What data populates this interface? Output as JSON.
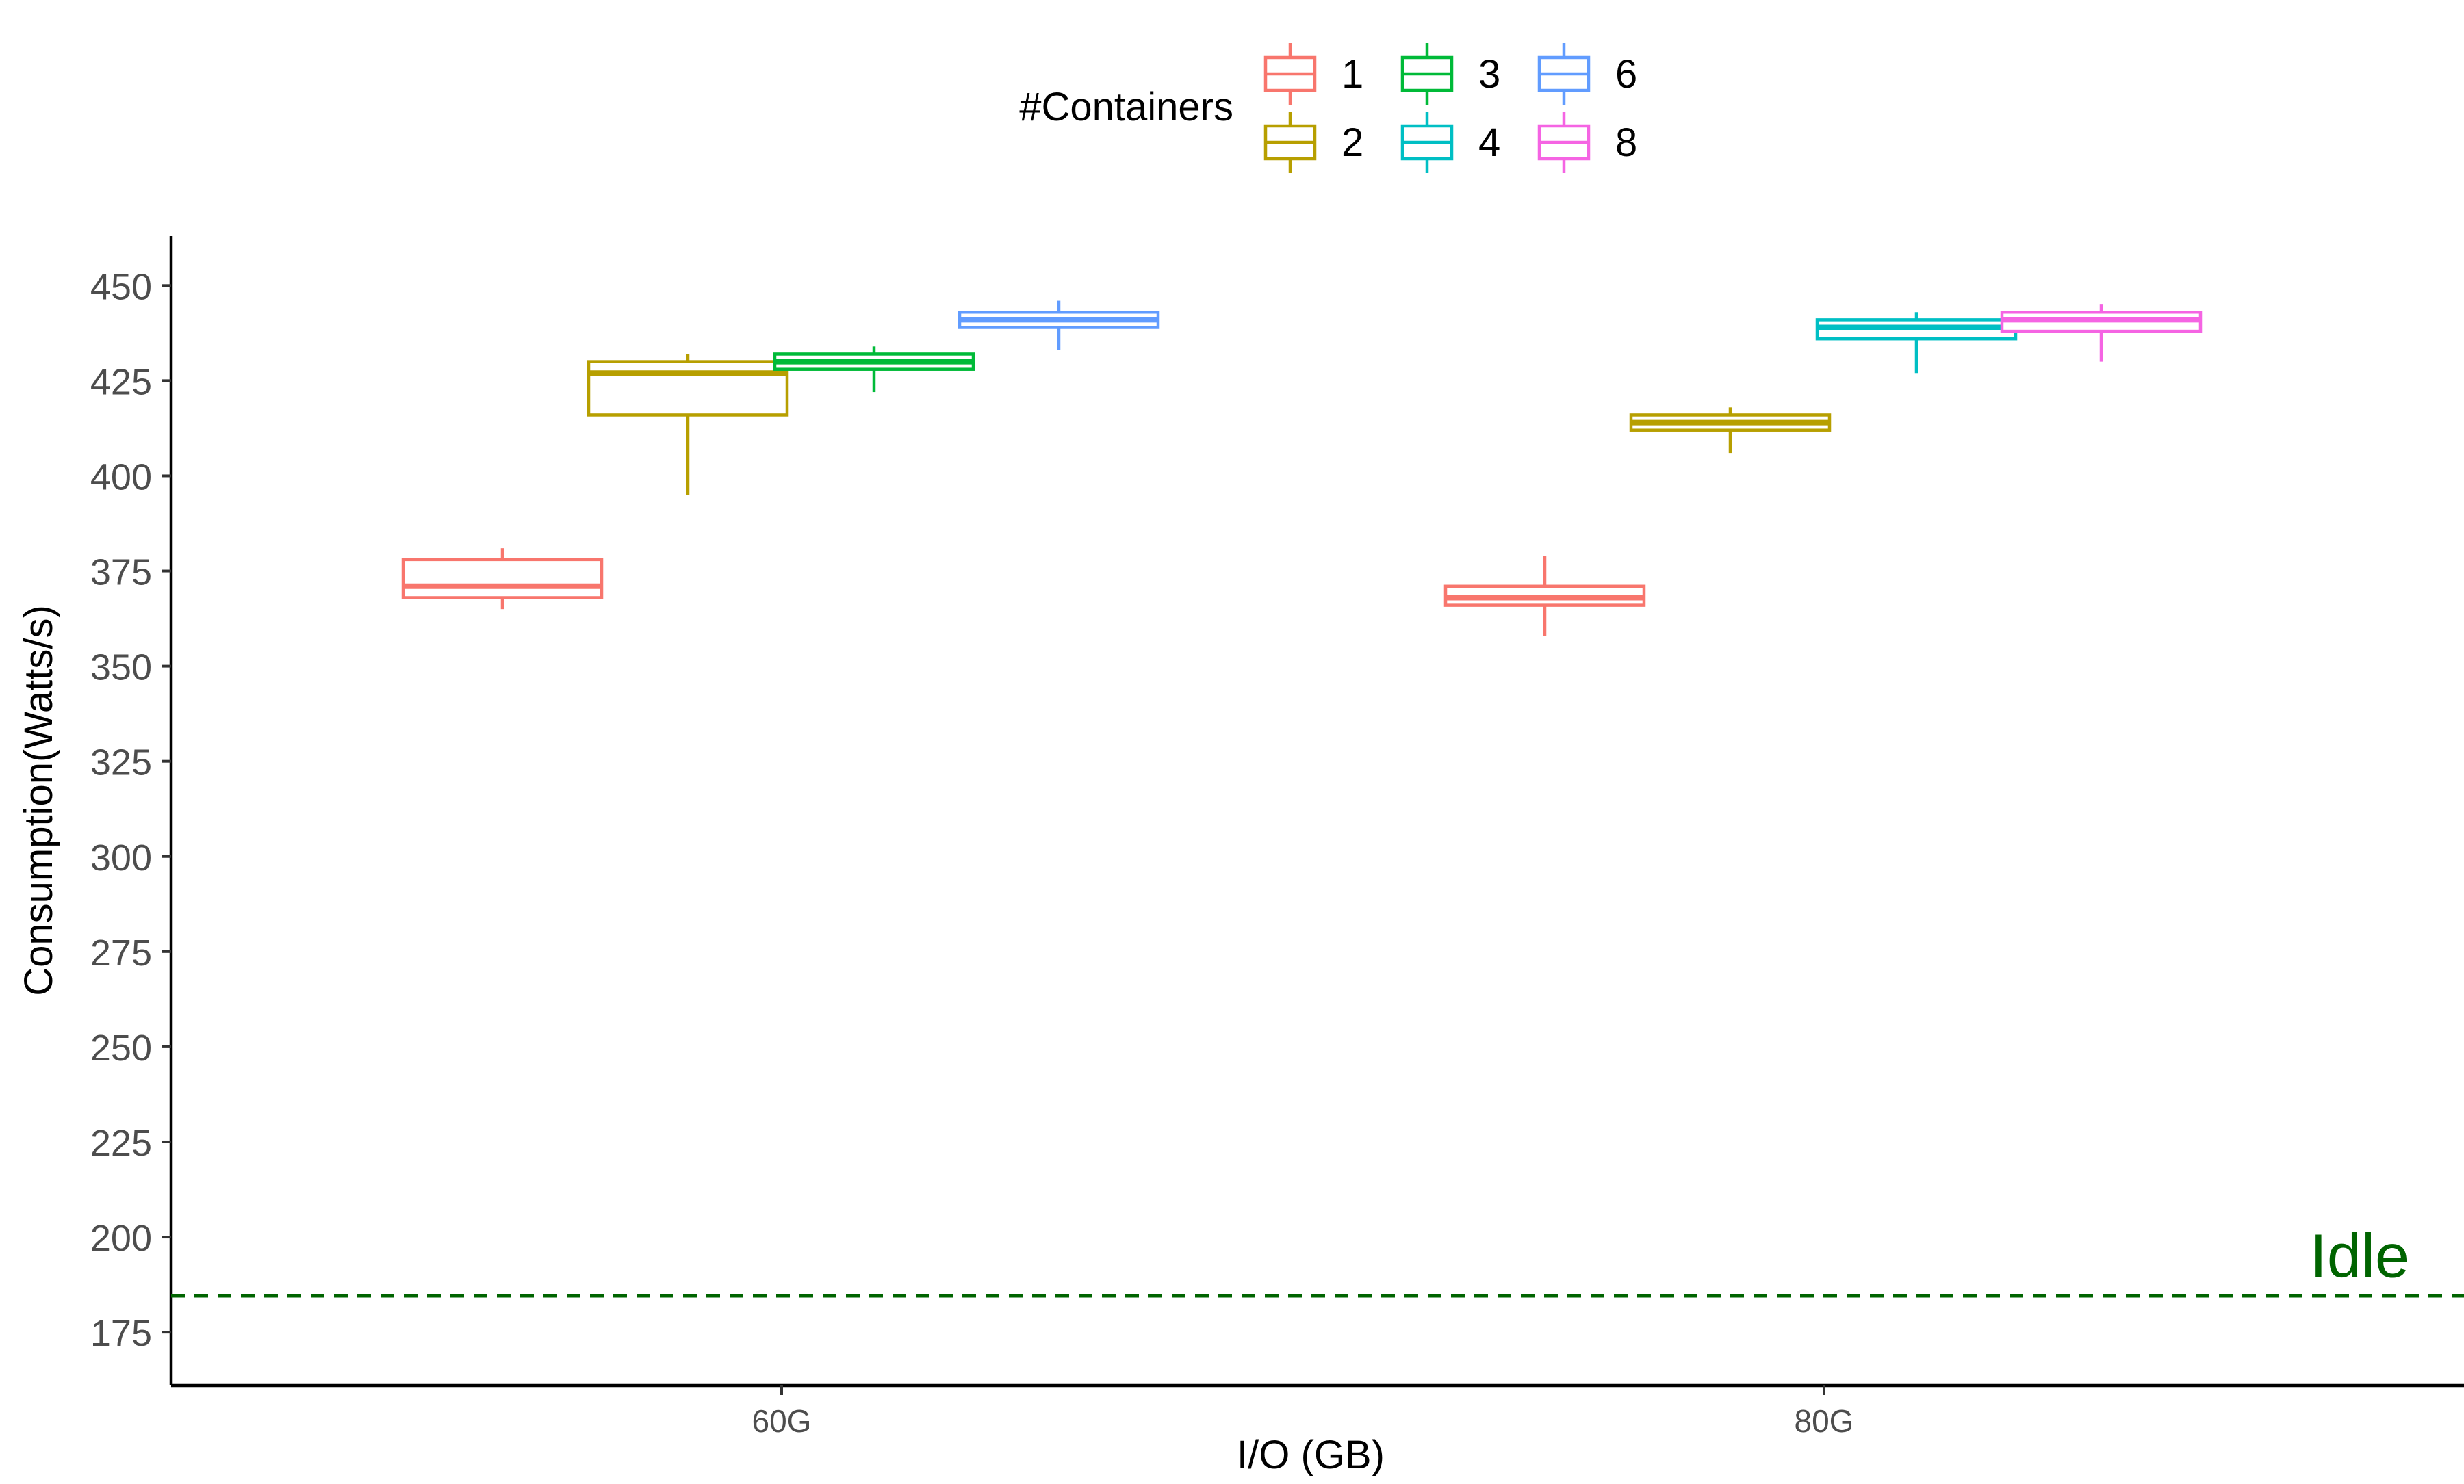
{
  "chart_data": {
    "type": "boxplot",
    "xlabel": "I/O (GB)",
    "ylabel": "Consumption(Watts/s)",
    "ylim": [
      161,
      463
    ],
    "yticks": [
      175,
      200,
      225,
      250,
      275,
      300,
      325,
      350,
      375,
      400,
      425,
      450
    ],
    "grid": false,
    "categories": [
      "60G",
      "80G"
    ],
    "legend": {
      "title": "#Containers",
      "position": "top",
      "entries": [
        "1",
        "2",
        "3",
        "4",
        "6",
        "8"
      ]
    },
    "series": [
      {
        "name": "1",
        "color": "#F8766D"
      },
      {
        "name": "2",
        "color": "#B79F00"
      },
      {
        "name": "3",
        "color": "#00BA38"
      },
      {
        "name": "4",
        "color": "#00BFC4"
      },
      {
        "name": "6",
        "color": "#619CFF"
      },
      {
        "name": "8",
        "color": "#F564E3"
      }
    ],
    "boxes": [
      {
        "category": "60G",
        "series": "1",
        "slot": 0,
        "min": 365,
        "q1": 368,
        "median": 371,
        "q3": 378,
        "max": 381
      },
      {
        "category": "60G",
        "series": "2",
        "slot": 1,
        "min": 395,
        "q1": 416,
        "median": 427,
        "q3": 430,
        "max": 432
      },
      {
        "category": "60G",
        "series": "3",
        "slot": 2,
        "min": 422,
        "q1": 428,
        "median": 430,
        "q3": 432,
        "max": 434
      },
      {
        "category": "60G",
        "series": "6",
        "slot": 3,
        "min": 433,
        "q1": 439,
        "median": 441,
        "q3": 443,
        "max": 446
      },
      {
        "category": "80G",
        "series": "1",
        "slot": 0,
        "min": 358,
        "q1": 366,
        "median": 368,
        "q3": 371,
        "max": 379
      },
      {
        "category": "80G",
        "series": "2",
        "slot": 1,
        "min": 406,
        "q1": 412,
        "median": 414,
        "q3": 416,
        "max": 418
      },
      {
        "category": "80G",
        "series": "4",
        "slot": 2,
        "min": 427,
        "q1": 436,
        "median": 439,
        "q3": 441,
        "max": 443
      },
      {
        "category": "80G",
        "series": "8",
        "slot": 3,
        "min": 430,
        "q1": 438,
        "median": 441,
        "q3": 443,
        "max": 445
      }
    ],
    "reference_line": {
      "label": "Idle",
      "value": 184.5,
      "color": "#006400",
      "style": "dashed"
    }
  }
}
